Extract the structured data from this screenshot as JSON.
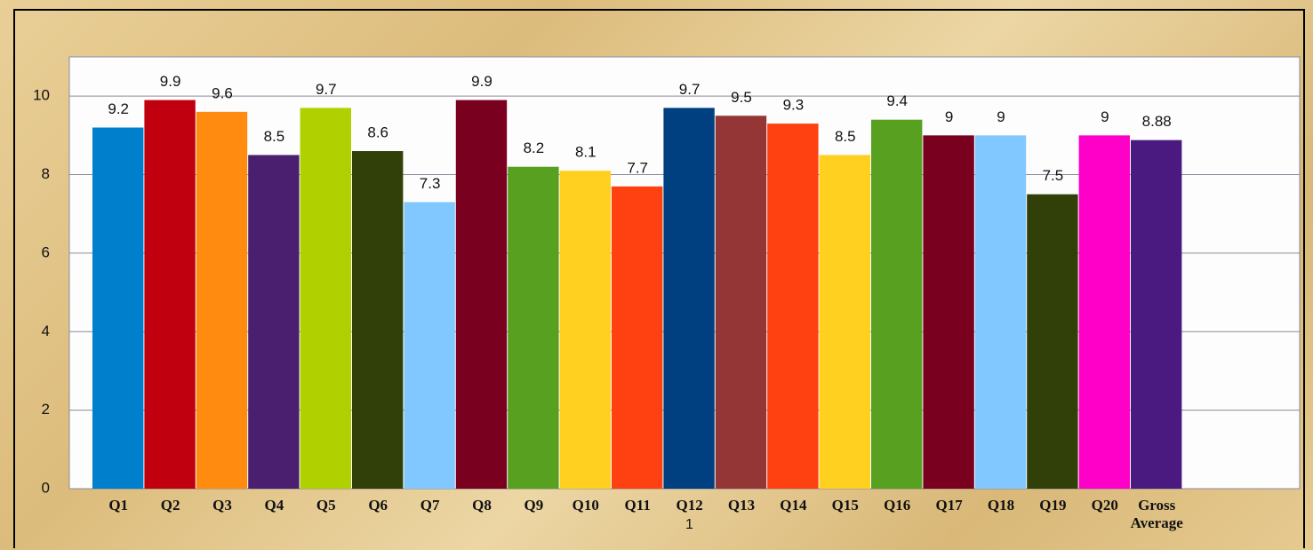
{
  "chart_data": {
    "type": "bar",
    "categories": [
      "Q1",
      "Q2",
      "Q3",
      "Q4",
      "Q5",
      "Q6",
      "Q7",
      "Q8",
      "Q9",
      "Q10",
      "Q11",
      "Q12",
      "Q13",
      "Q14",
      "Q15",
      "Q16",
      "Q17",
      "Q18",
      "Q19",
      "Q20",
      "Gross Average"
    ],
    "values": [
      9.2,
      9.9,
      9.6,
      8.5,
      9.7,
      8.6,
      7.3,
      9.9,
      8.2,
      8.1,
      7.7,
      9.7,
      9.5,
      9.3,
      8.5,
      9.4,
      9,
      9,
      7.5,
      9,
      8.88
    ],
    "colors": [
      "#0080cc",
      "#c0000f",
      "#ff8c10",
      "#4b1f6f",
      "#b0d000",
      "#314008",
      "#80c8ff",
      "#7a0020",
      "#58a020",
      "#ffd020",
      "#ff4010",
      "#004080",
      "#943636",
      "#ff4010",
      "#ffd020",
      "#58a020",
      "#7a0020",
      "#80c8ff",
      "#314008",
      "#ff00c8",
      "#4a1a80"
    ],
    "ylim": [
      0,
      11
    ],
    "yticks": [
      0,
      2,
      4,
      6,
      8,
      10
    ],
    "grid": true,
    "page_number": "1"
  }
}
